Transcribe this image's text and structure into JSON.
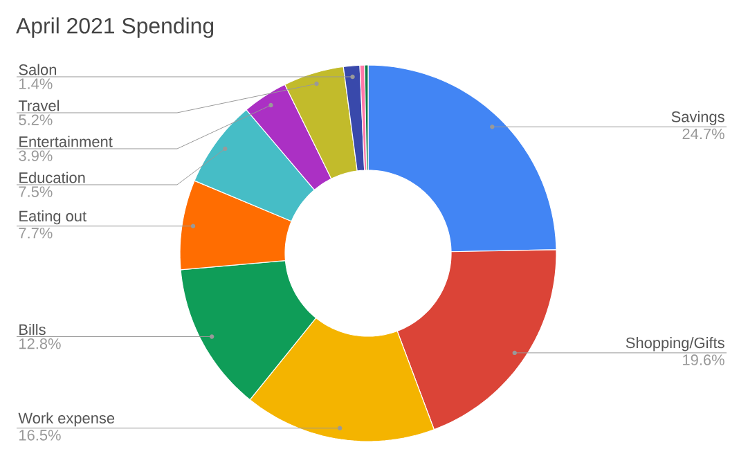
{
  "chart_data": {
    "type": "donut",
    "title": "April 2021 Spending",
    "categories": [
      "Savings",
      "Shopping/Gifts",
      "Work expense",
      "Bills",
      "Eating out",
      "Education",
      "Entertainment",
      "Travel",
      "Salon",
      null,
      null
    ],
    "values": [
      24.7,
      19.6,
      16.5,
      12.8,
      7.7,
      7.5,
      3.9,
      5.2,
      1.4,
      0.4,
      0.3
    ],
    "colors": [
      "#4285f4",
      "#db4437",
      "#f4b400",
      "#0f9d58",
      "#ff6d01",
      "#46bdc6",
      "#ab30c4",
      "#c2bb2b",
      "#3949ab",
      "#ff79a8",
      "#0b7b46"
    ],
    "value_labels": [
      "24.7%",
      "19.6%",
      "16.5%",
      "12.8%",
      "7.7%",
      "7.5%",
      "3.9%",
      "5.2%",
      "1.4%",
      null,
      null
    ]
  }
}
